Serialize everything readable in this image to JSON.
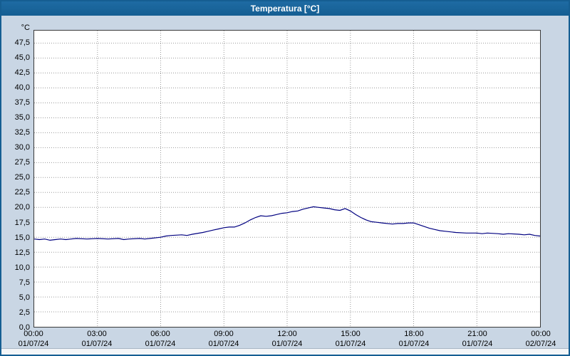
{
  "title": "Temperatura [°C]",
  "colors": {
    "titlebar": "#155e92",
    "background": "#c9d6e4",
    "plot_background": "#ffffff",
    "grid": "#9a9a9a",
    "line": "#000080"
  },
  "chart_data": {
    "type": "line",
    "title": "Temperatura [°C]",
    "xlabel": "",
    "ylabel": "°C",
    "ylim": [
      0,
      47.5
    ],
    "ytick_step": 2.5,
    "grid": true,
    "legend": "none",
    "yticks": [
      "47,5",
      "45,0",
      "42,5",
      "40,0",
      "37,5",
      "35,0",
      "32,5",
      "30,0",
      "27,5",
      "25,0",
      "22,5",
      "20,0",
      "17,5",
      "15,0",
      "12,5",
      "10,0",
      "7,5",
      "5,0",
      "2,5",
      "0,0"
    ],
    "xticks": [
      {
        "hour": 0,
        "time": "00:00",
        "date": "01/07/24"
      },
      {
        "hour": 3,
        "time": "03:00",
        "date": "01/07/24"
      },
      {
        "hour": 6,
        "time": "06:00",
        "date": "01/07/24"
      },
      {
        "hour": 9,
        "time": "09:00",
        "date": "01/07/24"
      },
      {
        "hour": 12,
        "time": "12:00",
        "date": "01/07/24"
      },
      {
        "hour": 15,
        "time": "15:00",
        "date": "01/07/24"
      },
      {
        "hour": 18,
        "time": "18:00",
        "date": "01/07/24"
      },
      {
        "hour": 21,
        "time": "21:00",
        "date": "01/07/24"
      },
      {
        "hour": 24,
        "time": "00:00",
        "date": "02/07/24"
      }
    ],
    "series": [
      {
        "name": "Temperatura",
        "color": "#000080",
        "points": [
          [
            0.0,
            14.7
          ],
          [
            0.25,
            14.6
          ],
          [
            0.5,
            14.7
          ],
          [
            0.75,
            14.5
          ],
          [
            1.0,
            14.6
          ],
          [
            1.25,
            14.7
          ],
          [
            1.5,
            14.6
          ],
          [
            1.75,
            14.7
          ],
          [
            2.0,
            14.8
          ],
          [
            2.5,
            14.7
          ],
          [
            3.0,
            14.8
          ],
          [
            3.5,
            14.7
          ],
          [
            4.0,
            14.8
          ],
          [
            4.25,
            14.6
          ],
          [
            4.5,
            14.7
          ],
          [
            5.0,
            14.8
          ],
          [
            5.25,
            14.7
          ],
          [
            5.5,
            14.8
          ],
          [
            6.0,
            15.0
          ],
          [
            6.25,
            15.2
          ],
          [
            6.5,
            15.3
          ],
          [
            7.0,
            15.4
          ],
          [
            7.25,
            15.3
          ],
          [
            7.5,
            15.5
          ],
          [
            8.0,
            15.8
          ],
          [
            8.25,
            16.0
          ],
          [
            8.5,
            16.2
          ],
          [
            8.75,
            16.4
          ],
          [
            9.0,
            16.6
          ],
          [
            9.25,
            16.7
          ],
          [
            9.5,
            16.7
          ],
          [
            9.75,
            17.0
          ],
          [
            10.0,
            17.4
          ],
          [
            10.25,
            17.9
          ],
          [
            10.5,
            18.3
          ],
          [
            10.75,
            18.6
          ],
          [
            11.0,
            18.5
          ],
          [
            11.25,
            18.6
          ],
          [
            11.5,
            18.8
          ],
          [
            11.75,
            19.0
          ],
          [
            12.0,
            19.1
          ],
          [
            12.25,
            19.3
          ],
          [
            12.5,
            19.4
          ],
          [
            12.75,
            19.7
          ],
          [
            13.0,
            19.9
          ],
          [
            13.25,
            20.1
          ],
          [
            13.5,
            20.0
          ],
          [
            13.75,
            19.9
          ],
          [
            14.0,
            19.8
          ],
          [
            14.25,
            19.6
          ],
          [
            14.5,
            19.5
          ],
          [
            14.75,
            19.8
          ],
          [
            15.0,
            19.4
          ],
          [
            15.25,
            18.8
          ],
          [
            15.5,
            18.3
          ],
          [
            15.75,
            17.9
          ],
          [
            16.0,
            17.6
          ],
          [
            16.25,
            17.5
          ],
          [
            16.5,
            17.4
          ],
          [
            17.0,
            17.2
          ],
          [
            17.25,
            17.3
          ],
          [
            17.5,
            17.3
          ],
          [
            17.75,
            17.4
          ],
          [
            18.0,
            17.4
          ],
          [
            18.25,
            17.1
          ],
          [
            18.5,
            16.8
          ],
          [
            18.75,
            16.5
          ],
          [
            19.0,
            16.3
          ],
          [
            19.25,
            16.1
          ],
          [
            19.5,
            16.0
          ],
          [
            20.0,
            15.8
          ],
          [
            20.5,
            15.7
          ],
          [
            21.0,
            15.7
          ],
          [
            21.25,
            15.6
          ],
          [
            21.5,
            15.7
          ],
          [
            22.0,
            15.6
          ],
          [
            22.25,
            15.5
          ],
          [
            22.5,
            15.6
          ],
          [
            23.0,
            15.5
          ],
          [
            23.25,
            15.4
          ],
          [
            23.5,
            15.5
          ],
          [
            23.75,
            15.3
          ],
          [
            24.0,
            15.2
          ]
        ]
      }
    ]
  }
}
